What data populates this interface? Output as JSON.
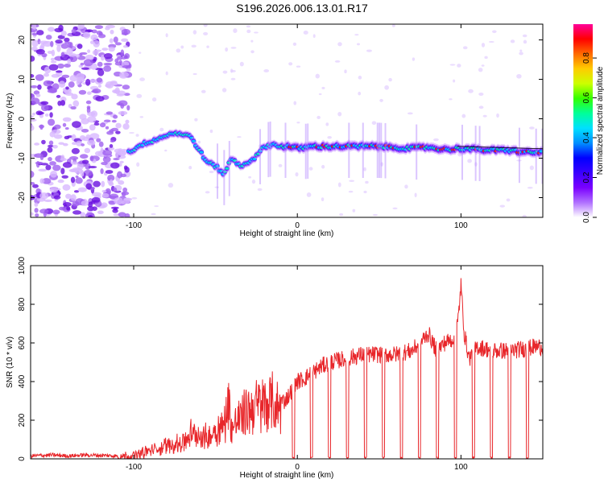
{
  "title": "S196.2026.006.13.01.R17",
  "colors": {
    "snr_line": "#e8262a",
    "axis": "#000000",
    "dense": [
      "#7a00ff",
      "#3a00ff",
      "#0000ff",
      "#00d2ff",
      "#00ff99",
      "#ff0000"
    ]
  },
  "chart_data": [
    {
      "type": "heatmap",
      "xlabel": "Height of straight line (km)",
      "ylabel": "Frequency (Hz)",
      "xlim": [
        -163,
        150
      ],
      "ylim": [
        -25,
        24
      ],
      "xticks": [
        -100,
        0,
        100
      ],
      "xtick_labels": [
        "-100",
        "0",
        "100"
      ],
      "yticks": [
        20,
        10,
        0,
        -10,
        -20
      ],
      "ytick_labels": [
        "20",
        "10",
        "0",
        "-10",
        "-20"
      ],
      "ridge": {
        "x": [
          -103,
          -95,
          -85,
          -75,
          -65,
          -60,
          -55,
          -50,
          -45,
          -40,
          -35,
          -30,
          -25,
          -20,
          -15,
          -10,
          -5,
          0,
          10,
          20,
          30,
          40,
          50,
          60,
          70,
          80,
          90,
          100,
          110,
          120,
          130,
          140,
          150
        ],
        "y": [
          -8.5,
          -6.5,
          -5,
          -3.5,
          -4.5,
          -8,
          -11,
          -12,
          -14,
          -10,
          -12,
          -11,
          -9.5,
          -7,
          -6.5,
          -7,
          -7,
          -7.5,
          -7,
          -7,
          -7,
          -7,
          -7,
          -7.3,
          -7.5,
          -7.2,
          -7.8,
          -7.5,
          -7.8,
          -8,
          -8,
          -8.5,
          -8.5
        ]
      },
      "noise_region_x": [
        -163,
        -103
      ],
      "colorbar": {
        "label": "Normalized spectral amplitude",
        "range": [
          0,
          0.97
        ],
        "ticks": [
          0.0,
          0.2,
          0.4,
          0.6,
          0.8
        ],
        "tick_labels": [
          "0.0",
          "0.2",
          "0.4",
          "0.6",
          "0.8"
        ],
        "colors": [
          "#ffffff",
          "#b070ff",
          "#7a00ff",
          "#3a00ff",
          "#0000ff",
          "#0090ff",
          "#00e0ff",
          "#00ff99",
          "#33ff00",
          "#ccff00",
          "#ffcc00",
          "#ff6a00",
          "#ff0000",
          "#ff0099"
        ]
      }
    },
    {
      "type": "line",
      "xlabel": "Height of straight line (km)",
      "ylabel": "SNR (10 * v/v)",
      "xlim": [
        -163,
        150
      ],
      "ylim": [
        0,
        1000
      ],
      "xticks": [
        -100,
        0,
        100
      ],
      "xtick_labels": [
        "-100",
        "0",
        "100"
      ],
      "yticks": [
        0,
        200,
        400,
        600,
        800,
        1000
      ],
      "ytick_labels": [
        "0",
        "200",
        "400",
        "600",
        "800",
        "1000"
      ],
      "series": [
        {
          "name": "SNR",
          "x": [
            -163,
            -150,
            -140,
            -130,
            -120,
            -110,
            -100,
            -95,
            -90,
            -85,
            -80,
            -75,
            -70,
            -65,
            -60,
            -55,
            -50,
            -45,
            -42,
            -40,
            -38,
            -35,
            -30,
            -25,
            -20,
            -15,
            -10,
            -8,
            -5,
            -2,
            0,
            5,
            10,
            15,
            20,
            30,
            40,
            50,
            60,
            70,
            75,
            80,
            85,
            90,
            95,
            98,
            100,
            102,
            105,
            110,
            120,
            130,
            140,
            145,
            150
          ],
          "y": [
            15,
            20,
            15,
            20,
            18,
            15,
            20,
            35,
            50,
            60,
            80,
            90,
            100,
            150,
            140,
            130,
            180,
            200,
            350,
            180,
            220,
            250,
            300,
            320,
            330,
            340,
            300,
            300,
            330,
            380,
            400,
            420,
            450,
            480,
            500,
            520,
            540,
            540,
            540,
            560,
            600,
            650,
            560,
            600,
            620,
            700,
            900,
            650,
            520,
            580,
            560,
            560,
            570,
            580,
            580
          ]
        }
      ]
    }
  ]
}
